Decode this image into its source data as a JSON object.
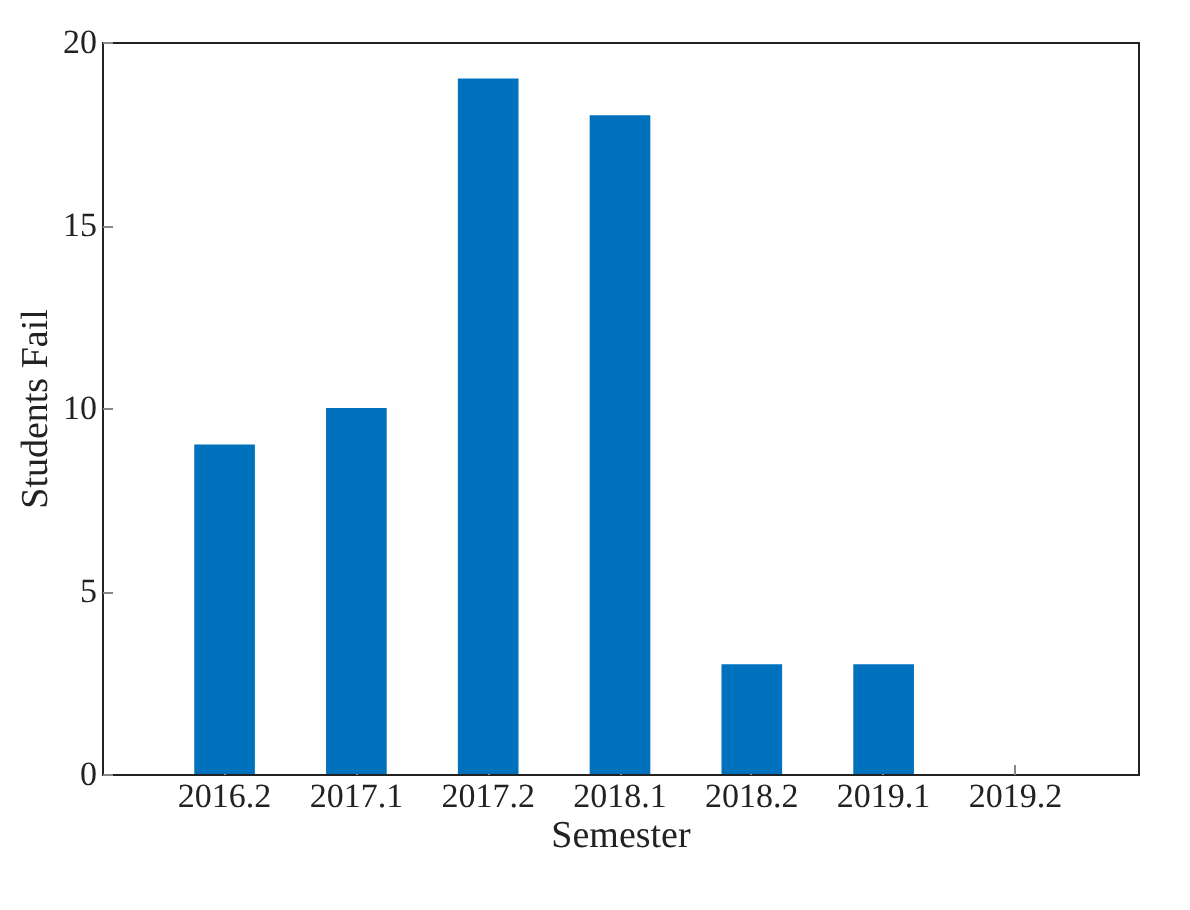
{
  "chart_data": {
    "type": "bar",
    "xlabel": "Semester",
    "ylabel": "Students Fail",
    "categories": [
      "2016.2",
      "2017.1",
      "2017.2",
      "2018.1",
      "2018.2",
      "2019.1",
      "2019.2"
    ],
    "values": [
      9,
      10,
      19,
      18,
      3,
      3,
      0
    ],
    "color": "#0072bd",
    "ylim": [
      0,
      20
    ],
    "yticks": [
      0,
      5,
      10,
      15,
      20
    ]
  }
}
